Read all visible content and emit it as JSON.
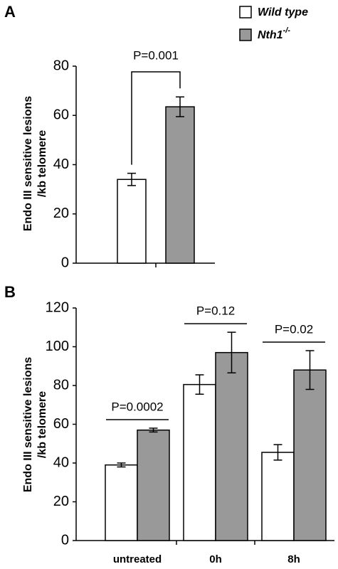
{
  "chart_data": [
    {
      "type": "bar",
      "panel": "A",
      "y_label": [
        "Endo III sensitive lesions",
        "/kb telomere"
      ],
      "categories": [
        null
      ],
      "series": [
        {
          "name": "Wild type",
          "color": "#ffffff",
          "values": [
            34
          ],
          "errors": [
            2.5
          ]
        },
        {
          "name": "Nth1-/-",
          "color": "#999999",
          "values": [
            63.5
          ],
          "errors": [
            4
          ]
        }
      ],
      "p_values": [
        "P=0.001"
      ],
      "ylim": [
        0,
        80
      ],
      "yticks": [
        0,
        20,
        40,
        60,
        80
      ]
    },
    {
      "type": "bar",
      "panel": "B",
      "y_label": [
        "Endo III sensitive lesions",
        "/kb telomere"
      ],
      "categories": [
        "untreated",
        "0h",
        "8h"
      ],
      "series": [
        {
          "name": "Wild type",
          "color": "#ffffff",
          "values": [
            39,
            80.5,
            45.5
          ],
          "errors": [
            1,
            5,
            4
          ]
        },
        {
          "name": "Nth1-/-",
          "color": "#999999",
          "values": [
            57,
            97,
            88
          ],
          "errors": [
            1,
            10.5,
            10
          ]
        }
      ],
      "p_values": [
        "P=0.0002",
        "P=0.12",
        "P=0.02"
      ],
      "ylim": [
        0,
        120
      ],
      "yticks": [
        0,
        20,
        40,
        60,
        80,
        100,
        120
      ]
    }
  ]
}
